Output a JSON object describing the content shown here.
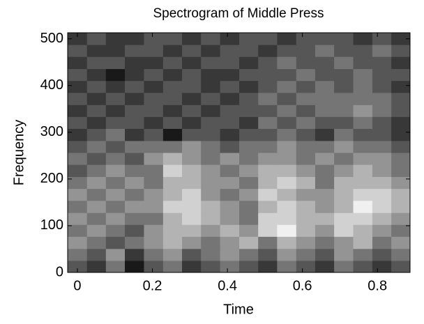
{
  "chart_data": {
    "type": "heatmap",
    "title": "Spectrogram of Middle Press",
    "xlabel": "Time",
    "ylabel": "Frequency",
    "colormap": "gray",
    "x": [
      0,
      0.051,
      0.101,
      0.152,
      0.203,
      0.254,
      0.304,
      0.355,
      0.406,
      0.457,
      0.507,
      0.558,
      0.609,
      0.659,
      0.71,
      0.761,
      0.812,
      0.862
    ],
    "y": [
      13,
      38,
      64,
      90,
      115,
      141,
      167,
      192,
      218,
      244,
      269,
      295,
      321,
      346,
      372,
      398,
      423,
      449,
      475,
      500
    ],
    "z": [
      [
        4,
        3,
        5,
        2,
        4,
        5,
        3,
        4,
        5,
        4,
        3,
        5,
        4,
        3,
        5,
        4,
        3,
        4
      ],
      [
        5,
        4,
        6,
        3,
        5,
        6,
        4,
        5,
        6,
        5,
        4,
        6,
        5,
        4,
        6,
        5,
        4,
        5
      ],
      [
        6,
        5,
        4,
        5,
        6,
        7,
        6,
        5,
        6,
        7,
        5,
        7,
        6,
        5,
        6,
        7,
        5,
        6
      ],
      [
        5,
        6,
        5,
        4,
        6,
        7,
        7,
        6,
        7,
        6,
        8,
        9,
        7,
        6,
        8,
        7,
        6,
        5
      ],
      [
        6,
        5,
        6,
        5,
        5,
        7,
        8,
        7,
        6,
        5,
        8,
        8,
        7,
        7,
        8,
        8,
        7,
        6
      ],
      [
        5,
        6,
        5,
        6,
        6,
        8,
        8,
        7,
        6,
        5,
        7,
        8,
        7,
        6,
        7,
        9,
        8,
        7
      ],
      [
        6,
        5,
        6,
        5,
        6,
        7,
        8,
        6,
        5,
        6,
        8,
        7,
        6,
        6,
        7,
        8,
        8,
        7
      ],
      [
        5,
        6,
        5,
        6,
        5,
        7,
        7,
        6,
        6,
        5,
        7,
        8,
        7,
        5,
        7,
        7,
        7,
        6
      ],
      [
        4,
        5,
        6,
        5,
        5,
        8,
        7,
        6,
        5,
        6,
        7,
        7,
        6,
        5,
        6,
        7,
        6,
        5
      ],
      [
        5,
        4,
        5,
        4,
        6,
        7,
        6,
        5,
        6,
        5,
        6,
        6,
        5,
        6,
        5,
        6,
        6,
        5
      ],
      [
        4,
        5,
        4,
        5,
        5,
        5,
        6,
        5,
        4,
        5,
        5,
        6,
        5,
        5,
        6,
        5,
        5,
        4
      ],
      [
        3,
        4,
        5,
        3,
        4,
        2,
        4,
        4,
        3,
        4,
        4,
        5,
        4,
        3,
        5,
        4,
        4,
        3
      ],
      [
        4,
        3,
        4,
        4,
        3,
        4,
        3,
        4,
        4,
        3,
        5,
        4,
        5,
        4,
        4,
        5,
        4,
        3
      ],
      [
        3,
        4,
        3,
        4,
        4,
        3,
        4,
        3,
        4,
        4,
        4,
        5,
        4,
        5,
        5,
        6,
        5,
        4
      ],
      [
        4,
        3,
        4,
        3,
        4,
        4,
        3,
        4,
        3,
        4,
        5,
        4,
        5,
        5,
        5,
        5,
        5,
        4
      ],
      [
        3,
        4,
        3,
        4,
        3,
        4,
        4,
        3,
        4,
        3,
        4,
        5,
        4,
        5,
        4,
        5,
        4,
        3
      ],
      [
        4,
        3,
        2,
        3,
        4,
        3,
        4,
        3,
        3,
        4,
        4,
        4,
        5,
        4,
        4,
        5,
        4,
        4
      ],
      [
        3,
        4,
        4,
        3,
        3,
        4,
        3,
        4,
        4,
        3,
        4,
        5,
        4,
        4,
        5,
        4,
        4,
        3
      ],
      [
        4,
        3,
        3,
        4,
        4,
        3,
        4,
        3,
        4,
        4,
        3,
        4,
        4,
        5,
        4,
        4,
        5,
        4
      ],
      [
        3,
        4,
        3,
        3,
        4,
        4,
        3,
        4,
        3,
        4,
        4,
        3,
        4,
        4,
        4,
        3,
        4,
        3
      ]
    ],
    "xlim": [
      -0.026,
      0.887
    ],
    "ylim": [
      0,
      513
    ],
    "xticks": [
      0,
      0.2,
      0.4,
      0.6,
      0.8
    ],
    "yticks": [
      0,
      100,
      200,
      300,
      400,
      500
    ]
  }
}
